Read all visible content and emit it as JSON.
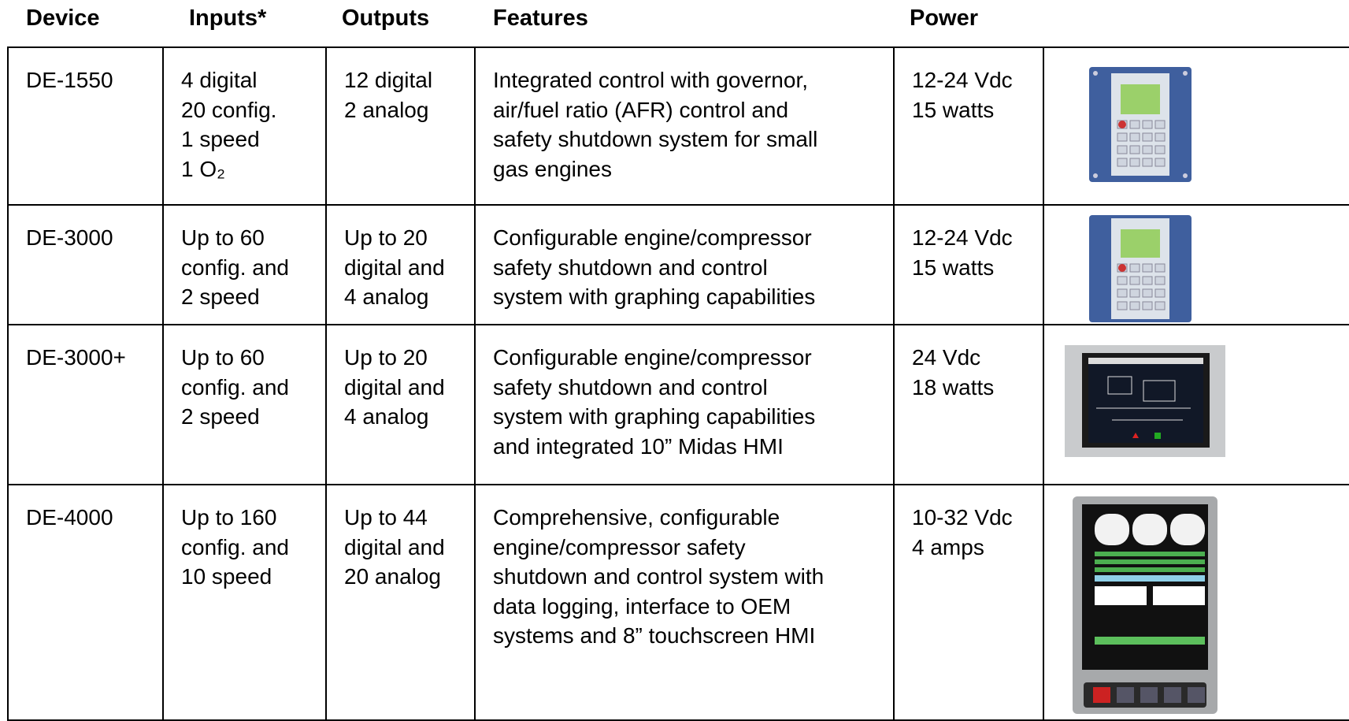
{
  "table": {
    "header": [
      "Device",
      "Inputs*",
      "Outputs",
      "Features",
      "Power"
    ],
    "rows": [
      {
        "cells": [
          [
            "DE-1550"
          ],
          [
            "4 digital",
            "20 config.",
            "1 speed",
            "1 O₂"
          ],
          [
            "12 digital",
            "2 analog"
          ],
          [
            "Integrated control with governor,",
            "air/fuel ratio (AFR) control and",
            "safety shutdown system for small",
            "gas engines"
          ],
          [
            "12-24 Vdc",
            "15 watts"
          ]
        ]
      },
      {
        "cells": [
          [
            "DE-3000"
          ],
          [
            "Up to 60",
            "config. and",
            "2 speed"
          ],
          [
            "Up to 20",
            "digital and",
            "4 analog"
          ],
          [
            "Configurable engine/compressor",
            "safety shutdown and control",
            "system with graphing capabilities"
          ],
          [
            "12-24 Vdc",
            "15 watts"
          ]
        ]
      },
      {
        "cells": [
          [
            "DE-3000+"
          ],
          [
            "Up to 60",
            "config. and",
            "2 speed"
          ],
          [
            "Up to 20",
            "digital and",
            "4 analog"
          ],
          [
            "Configurable engine/compressor",
            "safety shutdown and control",
            "system with graphing capabilities",
            "and integrated 10” Midas HMI"
          ],
          [
            "24 Vdc",
            "18 watts"
          ]
        ]
      },
      {
        "cells": [
          [
            "DE-4000"
          ],
          [
            "Up to 160",
            "config. and",
            "10 speed"
          ],
          [
            "Up to 44",
            "digital and",
            "20 analog"
          ],
          [
            "Comprehensive, configurable",
            "engine/compressor safety",
            "shutdown and control system with",
            "data logging, interface to OEM",
            "systems and 8” touchscreen HMI"
          ],
          [
            "10-32 Vdc",
            "4 amps"
          ]
        ]
      }
    ]
  }
}
